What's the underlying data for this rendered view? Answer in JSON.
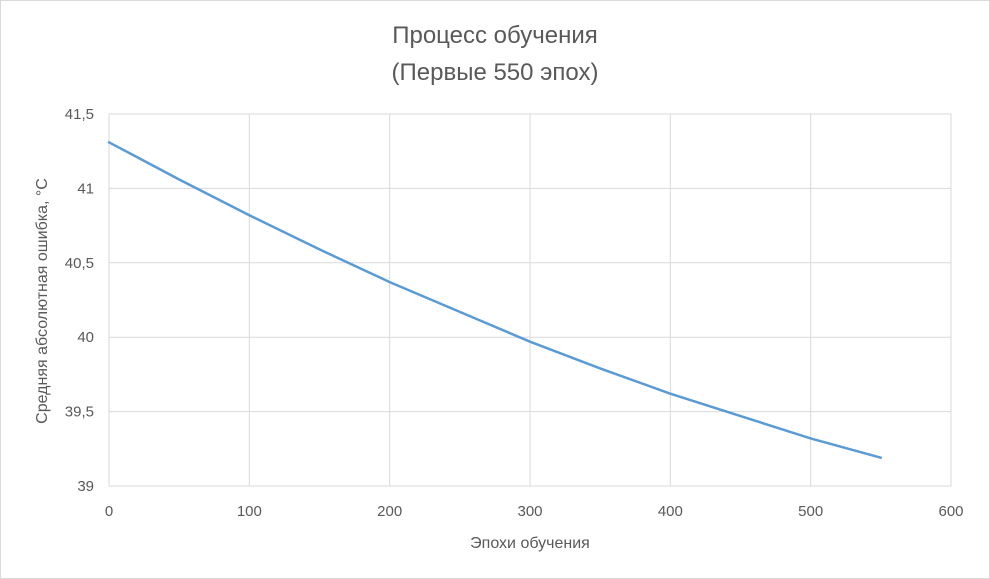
{
  "chart_data": {
    "type": "line",
    "title_lines": [
      "Процесс обучения",
      "(Первые 550 эпох)"
    ],
    "xlabel": "Эпохи обучения",
    "ylabel": "Средняя абсолютная ошибка, °С",
    "xlim": [
      0,
      600
    ],
    "ylim": [
      39,
      41.5
    ],
    "x_ticks": [
      0,
      100,
      200,
      300,
      400,
      500,
      600
    ],
    "x_tick_labels": [
      "0",
      "100",
      "200",
      "300",
      "400",
      "500",
      "600"
    ],
    "y_ticks": [
      39,
      39.5,
      40,
      40.5,
      41,
      41.5
    ],
    "y_tick_labels": [
      "39",
      "39,5",
      "40",
      "40,5",
      "41",
      "41,5"
    ],
    "grid": true,
    "legend": "none",
    "series": [
      {
        "color": "#5b9bd5",
        "x": [
          0,
          50,
          100,
          150,
          200,
          250,
          300,
          350,
          400,
          450,
          500,
          550
        ],
        "y": [
          41.31,
          41.06,
          40.82,
          40.59,
          40.37,
          40.17,
          39.97,
          39.79,
          39.62,
          39.47,
          39.32,
          39.19
        ]
      }
    ]
  }
}
